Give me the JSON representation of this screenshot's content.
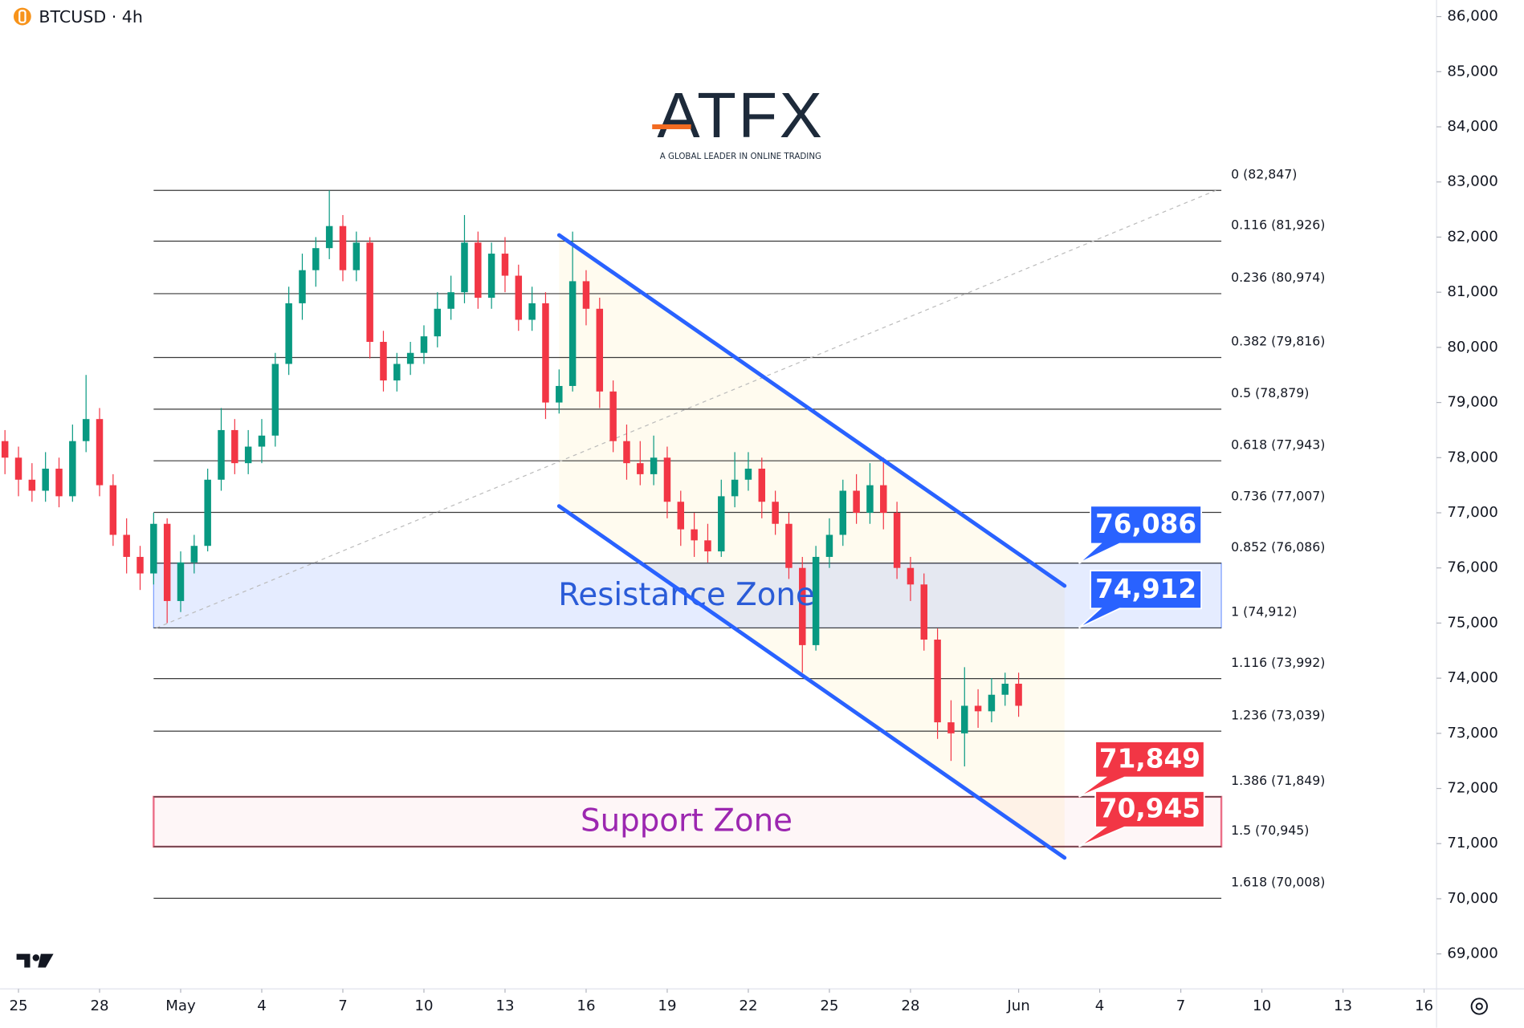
{
  "logo": {
    "text": "ATFX",
    "tagline": "A GLOBAL LEADER IN ONLINE TRADING"
  },
  "chart_data": {
    "type": "candlestick",
    "title": "BTCUSD · 4h",
    "xlim": [
      -0.683,
      52.46
    ],
    "ylim": [
      68366,
      86300
    ],
    "xticks": [
      {
        "value": 0,
        "label": "25"
      },
      {
        "value": 3,
        "label": "28"
      },
      {
        "value": 6,
        "label": "May"
      },
      {
        "value": 9,
        "label": "4"
      },
      {
        "value": 12,
        "label": "7"
      },
      {
        "value": 15,
        "label": "10"
      },
      {
        "value": 18,
        "label": "13"
      },
      {
        "value": 21,
        "label": "16"
      },
      {
        "value": 24,
        "label": "19"
      },
      {
        "value": 27,
        "label": "22"
      },
      {
        "value": 30,
        "label": "25"
      },
      {
        "value": 33,
        "label": "28"
      },
      {
        "value": 37,
        "label": "Jun"
      },
      {
        "value": 40,
        "label": "4"
      },
      {
        "value": 43,
        "label": "7"
      },
      {
        "value": 46,
        "label": "10"
      },
      {
        "value": 49,
        "label": "13"
      },
      {
        "value": 52,
        "label": "16"
      }
    ],
    "yticks": [
      {
        "value": 69000,
        "label": "69,000"
      },
      {
        "value": 70000,
        "label": "70,000"
      },
      {
        "value": 71000,
        "label": "71,000"
      },
      {
        "value": 72000,
        "label": "72,000"
      },
      {
        "value": 73000,
        "label": "73,000"
      },
      {
        "value": 74000,
        "label": "74,000"
      },
      {
        "value": 75000,
        "label": "75,000"
      },
      {
        "value": 76000,
        "label": "76,000"
      },
      {
        "value": 77000,
        "label": "77,000"
      },
      {
        "value": 78000,
        "label": "78,000"
      },
      {
        "value": 79000,
        "label": "79,000"
      },
      {
        "value": 80000,
        "label": "80,000"
      },
      {
        "value": 81000,
        "label": "81,000"
      },
      {
        "value": 82000,
        "label": "82,000"
      },
      {
        "value": 83000,
        "label": "83,000"
      },
      {
        "value": 84000,
        "label": "84,000"
      },
      {
        "value": 85000,
        "label": "85,000"
      },
      {
        "value": 86000,
        "label": "86,000"
      }
    ],
    "up_color": "#089981",
    "down_color": "#f23645",
    "x": [
      -0.5,
      0,
      0.5,
      1,
      1.5,
      2,
      2.5,
      3,
      3.5,
      4,
      4.5,
      5,
      5.5,
      6,
      6.5,
      7,
      7.5,
      8,
      8.5,
      9,
      9.5,
      10,
      10.5,
      11,
      11.5,
      12,
      12.5,
      13,
      13.5,
      14,
      14.5,
      15,
      15.5,
      16,
      16.5,
      17,
      17.5,
      18,
      18.5,
      19,
      19.5,
      20,
      20.5,
      21,
      21.5,
      22,
      22.5,
      23,
      23.5,
      24,
      24.5,
      25,
      25.5,
      26,
      26.5,
      27,
      27.5,
      28,
      28.5,
      29,
      29.5,
      30,
      30.5,
      31,
      31.5,
      32,
      32.5,
      33,
      33.5,
      34,
      34.5,
      35,
      35.5,
      36,
      36.5,
      37
    ],
    "open": [
      78300,
      78000,
      77600,
      77400,
      77800,
      77300,
      78300,
      78700,
      77500,
      76600,
      76200,
      75900,
      76800,
      75400,
      76100,
      76400,
      77600,
      78500,
      77900,
      78200,
      78400,
      79700,
      80800,
      81400,
      81800,
      82200,
      81400,
      81900,
      80100,
      79400,
      79700,
      79900,
      80200,
      80700,
      81000,
      81900,
      80900,
      81700,
      81300,
      80500,
      80800,
      79000,
      79300,
      81200,
      80700,
      79200,
      78300,
      77900,
      77700,
      78000,
      77200,
      76700,
      76500,
      76300,
      77300,
      77600,
      77800,
      77200,
      76800,
      76000,
      74600,
      76200,
      76600,
      77400,
      77000,
      77500,
      77000,
      76000,
      75700,
      74700,
      73200,
      73000,
      73500,
      73400,
      73700,
      73900
    ],
    "high": [
      78500,
      78200,
      77900,
      78100,
      78000,
      78600,
      79500,
      78900,
      77700,
      76900,
      76400,
      77000,
      76900,
      76300,
      76600,
      77800,
      78900,
      78700,
      78500,
      78700,
      79900,
      81100,
      81700,
      82000,
      82847,
      82400,
      82100,
      82000,
      80300,
      79900,
      80100,
      80400,
      81000,
      81300,
      82400,
      82100,
      81900,
      82000,
      81500,
      81100,
      81000,
      79600,
      82100,
      81400,
      80900,
      79400,
      78600,
      78300,
      78400,
      78200,
      77400,
      77000,
      76800,
      77600,
      78100,
      78100,
      78000,
      77400,
      77000,
      76200,
      76400,
      76900,
      77600,
      77700,
      77900,
      78000,
      77200,
      76200,
      75900,
      74900,
      73600,
      74200,
      73800,
      74000,
      74100,
      74100
    ],
    "low": [
      77700,
      77300,
      77200,
      77200,
      77100,
      77200,
      78100,
      77300,
      76400,
      75900,
      75600,
      75700,
      75000,
      75200,
      75900,
      76300,
      77400,
      77700,
      77700,
      77900,
      78200,
      79500,
      80500,
      81100,
      81600,
      81200,
      81200,
      79800,
      79200,
      79200,
      79500,
      79700,
      80000,
      80500,
      80800,
      80700,
      80700,
      81000,
      80300,
      80300,
      78700,
      78800,
      79200,
      80400,
      78900,
      78100,
      77600,
      77500,
      77500,
      76900,
      76400,
      76200,
      76100,
      76200,
      77100,
      77400,
      76900,
      76600,
      75800,
      74100,
      74500,
      76000,
      76400,
      76800,
      76800,
      76700,
      75800,
      75400,
      74500,
      72900,
      72500,
      72400,
      73100,
      73200,
      73500,
      73300
    ],
    "close": [
      78000,
      77600,
      77400,
      77800,
      77300,
      78300,
      78700,
      77500,
      76600,
      76200,
      75900,
      76800,
      75400,
      76100,
      76400,
      77600,
      78500,
      77900,
      78200,
      78400,
      79700,
      80800,
      81400,
      81800,
      82200,
      81400,
      81900,
      80100,
      79400,
      79700,
      79900,
      80200,
      80700,
      81000,
      81900,
      80900,
      81700,
      81300,
      80500,
      80800,
      79000,
      79300,
      81200,
      80700,
      79200,
      78300,
      77900,
      77700,
      78000,
      77200,
      76700,
      76500,
      76300,
      77300,
      77600,
      77800,
      77200,
      76800,
      76000,
      74600,
      76200,
      76600,
      77400,
      77000,
      77500,
      77000,
      76000,
      75700,
      74700,
      73200,
      73000,
      73500,
      73400,
      73700,
      73900,
      73500
    ],
    "fib_range": [
      5,
      44.5
    ],
    "fib_levels": [
      {
        "value": 82847,
        "label": "0 (82,847)"
      },
      {
        "value": 81926,
        "label": "0.116 (81,926)"
      },
      {
        "value": 80974,
        "label": "0.236 (80,974)"
      },
      {
        "value": 79816,
        "label": "0.382 (79,816)"
      },
      {
        "value": 78879,
        "label": "0.5 (78,879)"
      },
      {
        "value": 77943,
        "label": "0.618 (77,943)"
      },
      {
        "value": 77007,
        "label": "0.736 (77,007)"
      },
      {
        "value": 76086,
        "label": "0.852 (76,086)"
      },
      {
        "value": 74912,
        "label": "1 (74,912)"
      },
      {
        "value": 73992,
        "label": "1.116 (73,992)"
      },
      {
        "value": 73039,
        "label": "1.236 (73,039)"
      },
      {
        "value": 71849,
        "label": "1.386 (71,849)"
      },
      {
        "value": 70945,
        "label": "1.5 (70,945)"
      },
      {
        "value": 70008,
        "label": "1.618 (70,008)"
      }
    ],
    "fib_anchor": {
      "x": [
        5.1,
        44.3
      ],
      "y": [
        74912,
        82847
      ]
    },
    "zones": [
      {
        "name": "Resistance Zone",
        "low": 74912,
        "high": 76086,
        "color": "#2962ff",
        "text_color": "#2a5bd7"
      },
      {
        "name": "Support Zone",
        "low": 70945,
        "high": 71849,
        "color": "#e0103a",
        "text_color": "#9c27b0"
      }
    ],
    "channel": [
      {
        "x": [
          20,
          38.7
        ],
        "y": [
          82036,
          75676
        ]
      },
      {
        "x": [
          20,
          38.7
        ],
        "y": [
          77121,
          70743
        ]
      }
    ],
    "channel_color": "#2962ff",
    "callouts": [
      {
        "value": 76086,
        "label": "76,086",
        "color": "#2962ff"
      },
      {
        "value": 74912,
        "label": "74,912",
        "color": "#2962ff"
      },
      {
        "value": 71849,
        "label": "71,849",
        "color": "#f23645"
      },
      {
        "value": 70945,
        "label": "70,945",
        "color": "#f23645"
      }
    ]
  }
}
